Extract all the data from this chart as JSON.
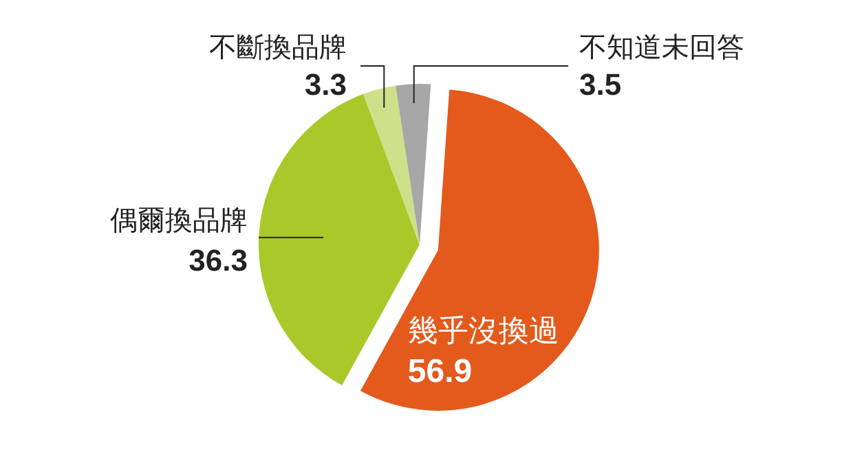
{
  "chart_data": {
    "type": "pie",
    "categories": [
      "幾乎沒換過",
      "偶爾換品牌",
      "不斷換品牌",
      "不知道未回答"
    ],
    "values": [
      56.9,
      36.3,
      3.3,
      3.5
    ],
    "colors": [
      "#e35a1c",
      "#a9c92a",
      "#cfe08a",
      "#a7a7a7"
    ],
    "data_labels": true
  }
}
